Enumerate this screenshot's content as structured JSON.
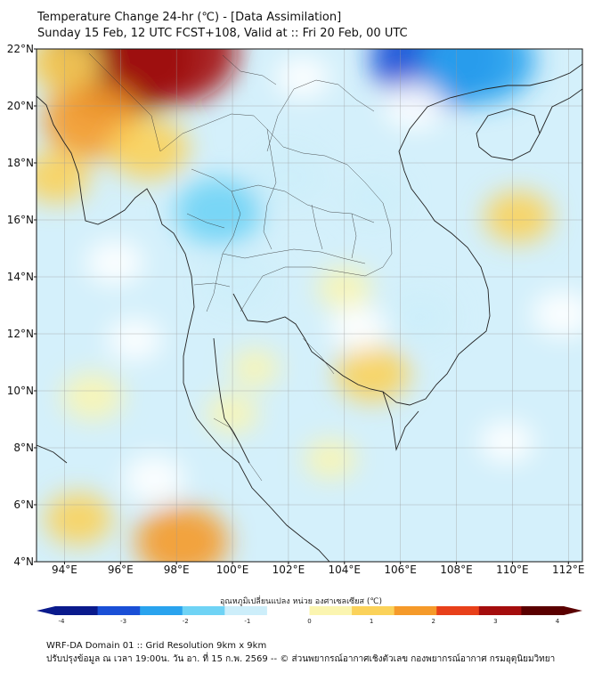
{
  "title": {
    "line1": "Temperature Change 24-hr (℃) - [Data Assimilation]",
    "line2": "Sunday 15 Feb, 12 UTC FCST+108, Valid at :: Fri 20 Feb, 00 UTC"
  },
  "axes": {
    "lat_labels": [
      "22°N",
      "20°N",
      "18°N",
      "16°N",
      "14°N",
      "12°N",
      "10°N",
      "8°N",
      "6°N",
      "4°N"
    ],
    "lon_labels": [
      "94°E",
      "96°E",
      "98°E",
      "100°E",
      "102°E",
      "104°E",
      "106°E",
      "108°E",
      "110°E",
      "112°E"
    ],
    "lat_range": [
      4,
      22
    ],
    "lon_range": [
      93,
      112.5
    ],
    "grid": true
  },
  "colorbar": {
    "title": "อุณหภูมิเปลี่ยนแปลง หน่วย องศาเซลเซียส (℃)",
    "ticks": [
      "-4",
      "-3",
      "-2",
      "-1",
      "0",
      "1",
      "2",
      "3",
      "4"
    ],
    "range": [
      -4,
      4
    ],
    "colors": [
      "#0a1a8c",
      "#1a4fd6",
      "#2aa3ee",
      "#6fd3f5",
      "#cdeefa",
      "#ffffff",
      "#fbf5b0",
      "#fbd25a",
      "#f59a2a",
      "#e8401a",
      "#a40d0d",
      "#5a0000"
    ]
  },
  "field_blobs": [
    {
      "lon": 96.0,
      "lat": 21.7,
      "value": 3.4
    },
    {
      "lon": 97.7,
      "lat": 21.9,
      "value": 3.0
    },
    {
      "lon": 95.0,
      "lat": 19.5,
      "value": 1.8
    },
    {
      "lon": 94.0,
      "lat": 21.5,
      "value": 1.0
    },
    {
      "lon": 97.0,
      "lat": 18.5,
      "value": 1.2
    },
    {
      "lon": 93.7,
      "lat": 17.5,
      "value": 0.8
    },
    {
      "lon": 95.0,
      "lat": 9.8,
      "value": 0.6
    },
    {
      "lon": 94.5,
      "lat": 5.5,
      "value": 0.8
    },
    {
      "lon": 98.2,
      "lat": 4.7,
      "value": 1.6
    },
    {
      "lon": 105.0,
      "lat": 10.6,
      "value": 1.0
    },
    {
      "lon": 110.2,
      "lat": 16.1,
      "value": 0.8
    },
    {
      "lon": 104.0,
      "lat": 13.6,
      "value": 0.4
    },
    {
      "lon": 100.0,
      "lat": 9.2,
      "value": 0.3
    },
    {
      "lon": 100.8,
      "lat": 10.8,
      "value": 0.2
    },
    {
      "lon": 103.5,
      "lat": 7.6,
      "value": 0.3
    },
    {
      "lon": 107.3,
      "lat": 21.7,
      "value": -2.8
    },
    {
      "lon": 108.8,
      "lat": 21.6,
      "value": -2.2
    },
    {
      "lon": 99.5,
      "lat": 16.3,
      "value": -1.4
    },
    {
      "lon": 102.0,
      "lat": 17.5,
      "value": -1.1
    },
    {
      "lon": 100.2,
      "lat": 13.8,
      "value": -1.0
    },
    {
      "lon": 105.0,
      "lat": 16.8,
      "value": -0.7
    },
    {
      "lon": 106.5,
      "lat": 20.0,
      "value": -0.6
    },
    {
      "lon": 104.5,
      "lat": 12.2,
      "value": -0.5
    },
    {
      "lon": 106.7,
      "lat": 12.6,
      "value": -0.8
    },
    {
      "lon": 95.8,
      "lat": 14.5,
      "value": -0.5
    },
    {
      "lon": 97.2,
      "lat": 6.9,
      "value": -0.6
    },
    {
      "lon": 96.5,
      "lat": 11.8,
      "value": -0.4
    },
    {
      "lon": 111.8,
      "lat": 12.7,
      "value": -0.6
    },
    {
      "lon": 109.8,
      "lat": 8.2,
      "value": -0.4
    },
    {
      "lon": 102.5,
      "lat": 21.0,
      "value": -0.4
    }
  ],
  "footer": {
    "line1": "WRF-DA Domain 01 :: Grid Resolution 9km x 9km",
    "line2": "ปรับปรุงข้อมูล ณ เวลา 19:00น. วัน อา. ที่ 15 ก.พ. 2569 -- © ส่วนพยากรณ์อากาศเชิงตัวเลข กองพยากรณ์อากาศ กรมอุตุนิยมวิทยา"
  }
}
